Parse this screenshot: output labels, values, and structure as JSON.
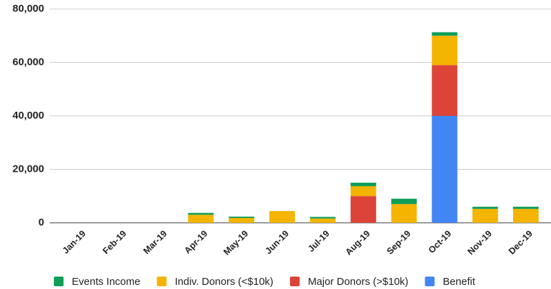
{
  "chart_data": {
    "type": "stacked_bar",
    "categories": [
      "Jan-19",
      "Feb-19",
      "Mar-19",
      "Apr-19",
      "May-19",
      "Jun-19",
      "Jul-19",
      "Aug-19",
      "Sep-19",
      "Oct-19",
      "Nov-19",
      "Dec-19"
    ],
    "series": [
      {
        "name": "Events Income",
        "color": "#0f9d58",
        "values": [
          0,
          0,
          0,
          700,
          500,
          0,
          600,
          1300,
          2000,
          1300,
          800,
          800
        ]
      },
      {
        "name": "Indiv. Donors (<$10k)",
        "color": "#f4b400",
        "values": [
          0,
          0,
          0,
          3000,
          1800,
          4400,
          1600,
          3700,
          7000,
          11000,
          5200,
          5200
        ]
      },
      {
        "name": "Major Donors (>$10k)",
        "color": "#db4437",
        "values": [
          0,
          0,
          0,
          0,
          0,
          0,
          0,
          10000,
          0,
          19000,
          0,
          0
        ]
      },
      {
        "name": "Benefit",
        "color": "#4285f4",
        "values": [
          0,
          0,
          0,
          0,
          0,
          0,
          0,
          0,
          0,
          40000,
          0,
          0
        ]
      }
    ],
    "ylim": [
      0,
      80000
    ],
    "yticks": [
      0,
      {
        "value": 20000,
        "label": "20,000"
      },
      {
        "value": 40000,
        "label": "40,000"
      },
      {
        "value": 60000,
        "label": "60,000"
      },
      {
        "value": 80000,
        "label": "80,000"
      }
    ],
    "grid": true,
    "legend": "bottom"
  }
}
